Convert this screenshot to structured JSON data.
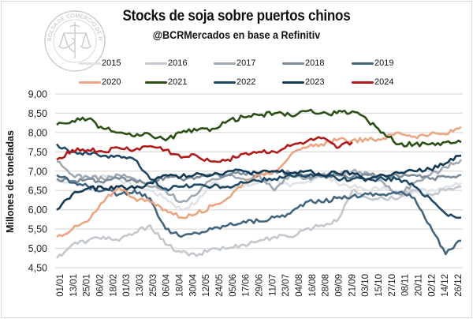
{
  "title": "Stocks de soja sobre puertos chinos",
  "subtitle": "@BCRMercados en base a Refinitiv",
  "logo": {
    "text": "BOLSA DE COMERCIO DE ROSARIO",
    "icon": "caduceus-scales-seal"
  },
  "chart_data": {
    "type": "line",
    "title": "Stocks de soja sobre puertos chinos",
    "subtitle": "@BCRMercados en base a Refinitiv",
    "xlabel": "",
    "ylabel": "Millones de toneladas",
    "ylim": [
      4.5,
      9.0
    ],
    "yticks": [
      "4,50",
      "5,00",
      "5,50",
      "6,00",
      "6,50",
      "7,00",
      "7,50",
      "8,00",
      "8,50",
      "9,00"
    ],
    "ytick_values": [
      4.5,
      5.0,
      5.5,
      6.0,
      6.5,
      7.0,
      7.5,
      8.0,
      8.5,
      9.0
    ],
    "xticks": [
      "01/01",
      "13/01",
      "25/01",
      "06/02",
      "18/02",
      "01/03",
      "13/03",
      "25/03",
      "06/04",
      "18/04",
      "30/04",
      "12/05",
      "24/05",
      "05/06",
      "17/06",
      "29/06",
      "11/07",
      "23/07",
      "04/08",
      "16/08",
      "28/08",
      "09/09",
      "21/09",
      "03/10",
      "15/10",
      "27/10",
      "08/11",
      "20/11",
      "02/12",
      "14/12",
      "26/12"
    ],
    "grid": true,
    "legend_position": "top",
    "x_note": "biweekly samples, index 0 = 01/01, index 26 = end of December",
    "series": [
      {
        "name": "2015",
        "color": "#dfe3e7",
        "values": [
          6.8,
          6.7,
          6.8,
          6.9,
          6.8,
          6.6,
          6.5,
          6.3,
          6.0,
          6.2,
          6.7,
          6.6,
          6.6,
          6.7,
          6.8,
          6.6,
          6.7,
          6.9,
          6.7,
          6.6,
          6.5,
          6.6,
          6.4,
          6.5,
          6.5,
          6.6,
          6.7
        ]
      },
      {
        "name": "2016",
        "color": "#c3c8ce",
        "values": [
          4.75,
          5.1,
          5.2,
          5.3,
          5.2,
          5.4,
          5.6,
          5.1,
          4.9,
          4.8,
          5.0,
          5.0,
          5.1,
          5.2,
          5.3,
          5.3,
          5.5,
          5.6,
          5.7,
          6.5,
          6.3,
          6.3,
          6.3,
          6.5,
          6.4,
          6.5,
          6.6
        ]
      },
      {
        "name": "2017",
        "color": "#9fa9b3",
        "values": [
          7.25,
          6.9,
          6.85,
          6.8,
          6.9,
          6.8,
          6.6,
          6.5,
          6.2,
          6.4,
          6.8,
          6.9,
          6.8,
          6.9,
          6.5,
          6.9,
          6.8,
          6.9,
          6.9,
          7.0,
          6.95,
          6.7,
          6.4,
          6.7,
          6.9,
          7.1,
          7.3
        ]
      },
      {
        "name": "2018",
        "color": "#7d8d9c",
        "values": [
          6.8,
          6.75,
          6.8,
          6.7,
          6.8,
          6.75,
          6.7,
          6.85,
          6.8,
          6.85,
          6.9,
          6.9,
          6.95,
          6.9,
          7.0,
          6.95,
          6.9,
          6.85,
          6.9,
          6.85,
          6.9,
          6.9,
          6.85,
          6.9,
          6.8,
          6.85,
          6.9
        ]
      },
      {
        "name": "2019",
        "color": "#43667f",
        "values": [
          6.9,
          6.7,
          6.6,
          6.5,
          6.4,
          6.5,
          6.3,
          5.5,
          5.3,
          5.4,
          5.5,
          5.6,
          5.7,
          5.7,
          5.8,
          5.9,
          6.2,
          6.2,
          6.3,
          6.35,
          6.4,
          6.4,
          6.45,
          6.3,
          5.6,
          4.85,
          5.2
        ]
      },
      {
        "name": "2020",
        "color": "#eba583",
        "values": [
          5.3,
          5.5,
          5.7,
          6.2,
          6.6,
          6.3,
          6.2,
          6.0,
          5.8,
          5.9,
          6.1,
          6.3,
          6.7,
          6.9,
          7.0,
          7.4,
          7.6,
          7.7,
          7.8,
          7.8,
          7.8,
          7.85,
          8.0,
          7.9,
          7.95,
          7.95,
          8.15
        ]
      },
      {
        "name": "2021",
        "color": "#2a5016",
        "values": [
          8.2,
          8.3,
          8.35,
          8.1,
          8.0,
          7.9,
          7.95,
          7.8,
          8.0,
          8.05,
          8.1,
          8.3,
          8.4,
          8.45,
          8.5,
          8.45,
          8.55,
          8.5,
          8.5,
          8.55,
          8.3,
          8.0,
          7.7,
          7.7,
          7.7,
          7.75,
          7.75
        ]
      },
      {
        "name": "2022",
        "color": "#1f4a66",
        "values": [
          7.7,
          7.5,
          7.45,
          7.4,
          7.4,
          7.3,
          6.8,
          6.55,
          6.6,
          6.65,
          6.6,
          6.6,
          6.7,
          6.75,
          6.8,
          6.9,
          6.85,
          6.9,
          6.8,
          6.8,
          6.8,
          6.8,
          6.8,
          6.6,
          6.3,
          5.9,
          5.8
        ]
      },
      {
        "name": "2023",
        "color": "#133a54",
        "values": [
          6.0,
          6.4,
          6.55,
          6.55,
          6.6,
          6.55,
          6.7,
          6.9,
          6.85,
          6.95,
          6.9,
          7.0,
          7.0,
          6.95,
          7.0,
          6.95,
          7.0,
          6.9,
          6.95,
          6.95,
          6.8,
          6.9,
          6.95,
          7.0,
          7.05,
          7.2,
          7.4
        ]
      },
      {
        "name": "2024",
        "color": "#b01b1b",
        "values": [
          7.3,
          7.55,
          7.55,
          7.5,
          7.6,
          7.55,
          7.65,
          7.55,
          7.35,
          7.4,
          7.25,
          7.3,
          7.45,
          7.5,
          7.5,
          7.65,
          7.75,
          7.85,
          7.6,
          7.75,
          null,
          null,
          null,
          null,
          null,
          null,
          null
        ]
      }
    ]
  },
  "legend": {
    "items": [
      "2015",
      "2016",
      "2017",
      "2018",
      "2019",
      "2020",
      "2021",
      "2022",
      "2023",
      "2024"
    ]
  }
}
